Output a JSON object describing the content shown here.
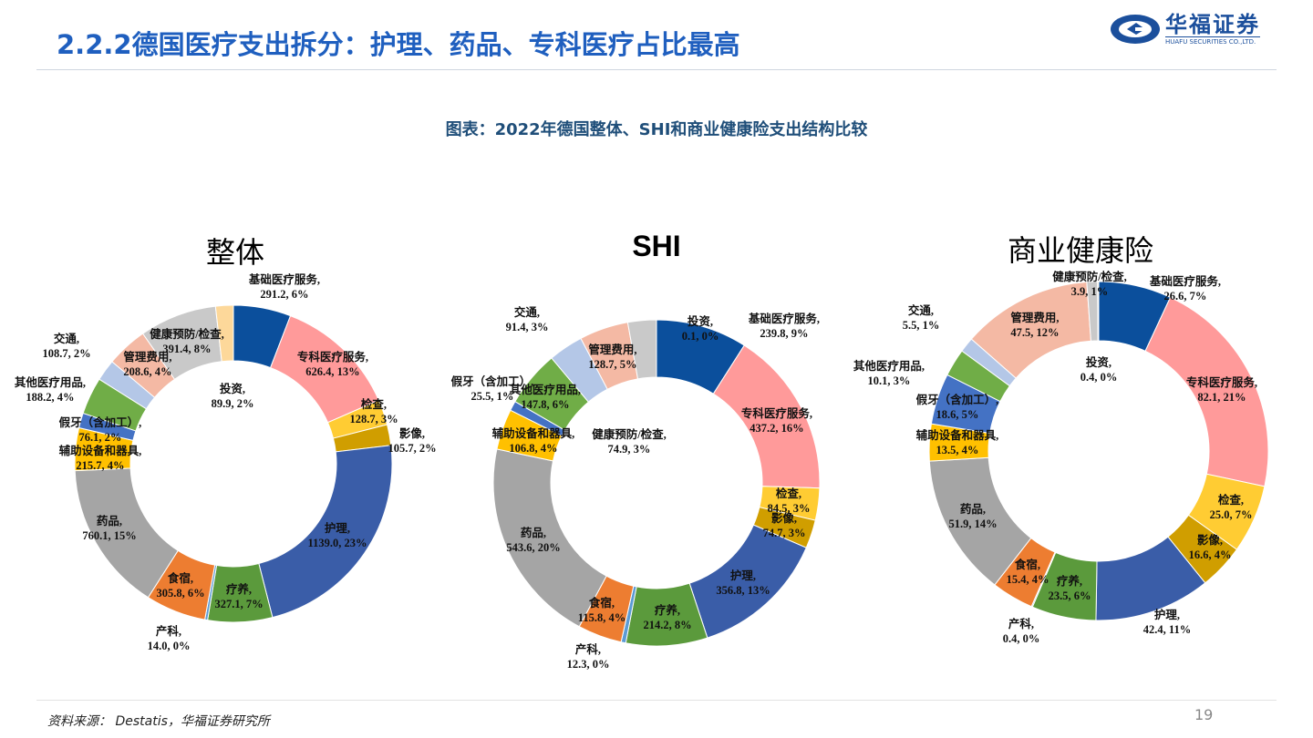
{
  "header": {
    "title": "2.2.2德国医疗支出拆分：护理、药品、专科医疗占比最高",
    "logo_cn": "华福证券",
    "logo_en": "HUAFU SECURITIES CO.,LTD."
  },
  "subtitle": "图表：2022年德国整体、SHI和商业健康险支出结构比较",
  "footer": {
    "source": "资料来源： Destatis，华福证券研究所",
    "page": "19"
  },
  "colors": [
    "#0b4f9c",
    "#ff9a9a",
    "#ffcc33",
    "#d09e00",
    "#3a5da8",
    "#5b9a3c",
    "#5b9bd5",
    "#ed7d31",
    "#a5a5a5",
    "#ffc000",
    "#4472c4",
    "#70ad47",
    "#b4c7e7",
    "#f4b9a4",
    "#c9c9c9",
    "#fdd89a"
  ],
  "chart_data": [
    {
      "type": "pie",
      "title": "整体",
      "categories": [
        "基础医疗服务",
        "专科医疗服务",
        "检查",
        "影像",
        "护理",
        "疗养",
        "产科",
        "食宿",
        "药品",
        "辅助设备和器具",
        "假牙（含加工）",
        "其他医疗用品",
        "交通",
        "管理费用",
        "健康预防/检查",
        "投资"
      ],
      "values": [
        291.2,
        626.4,
        128.7,
        105.7,
        1139.0,
        327.1,
        14.0,
        305.8,
        760.1,
        215.7,
        76.1,
        188.2,
        108.7,
        208.6,
        391.4,
        89.9
      ],
      "pcts": [
        "6%",
        "13%",
        "3%",
        "2%",
        "23%",
        "7%",
        "0%",
        "6%",
        "15%",
        "4%",
        "2%",
        "4%",
        "2%",
        "4%",
        "8%",
        "2%"
      ]
    },
    {
      "type": "pie",
      "title": "SHI",
      "categories": [
        "基础医疗服务",
        "专科医疗服务",
        "检查",
        "影像",
        "护理",
        "疗养",
        "产科",
        "食宿",
        "药品",
        "辅助设备和器具",
        "假牙（含加工）",
        "其他医疗用品",
        "交通",
        "管理费用",
        "健康预防/检查",
        "投资"
      ],
      "values": [
        239.8,
        437.2,
        84.5,
        74.7,
        356.8,
        214.2,
        12.3,
        115.8,
        543.6,
        106.8,
        25.5,
        147.8,
        91.4,
        128.7,
        74.9,
        0.1
      ],
      "pcts": [
        "9%",
        "16%",
        "3%",
        "3%",
        "13%",
        "8%",
        "0%",
        "4%",
        "20%",
        "4%",
        "1%",
        "6%",
        "3%",
        "5%",
        "3%",
        "0%"
      ]
    },
    {
      "type": "pie",
      "title": "商业健康险",
      "categories": [
        "基础医疗服务",
        "专科医疗服务",
        "检查",
        "影像",
        "护理",
        "疗养",
        "产科",
        "食宿",
        "药品",
        "辅助设备和器具",
        "假牙（含加工）",
        "其他医疗用品",
        "交通",
        "管理费用",
        "健康预防/检查",
        "投资"
      ],
      "values": [
        26.6,
        82.1,
        25.0,
        16.6,
        42.4,
        23.5,
        0.4,
        15.4,
        51.9,
        13.5,
        18.6,
        10.1,
        5.5,
        47.5,
        3.9,
        0.4
      ],
      "pcts": [
        "7%",
        "21%",
        "7%",
        "4%",
        "11%",
        "6%",
        "0%",
        "4%",
        "14%",
        "4%",
        "5%",
        "3%",
        "1%",
        "12%",
        "1%",
        "0%"
      ]
    }
  ]
}
